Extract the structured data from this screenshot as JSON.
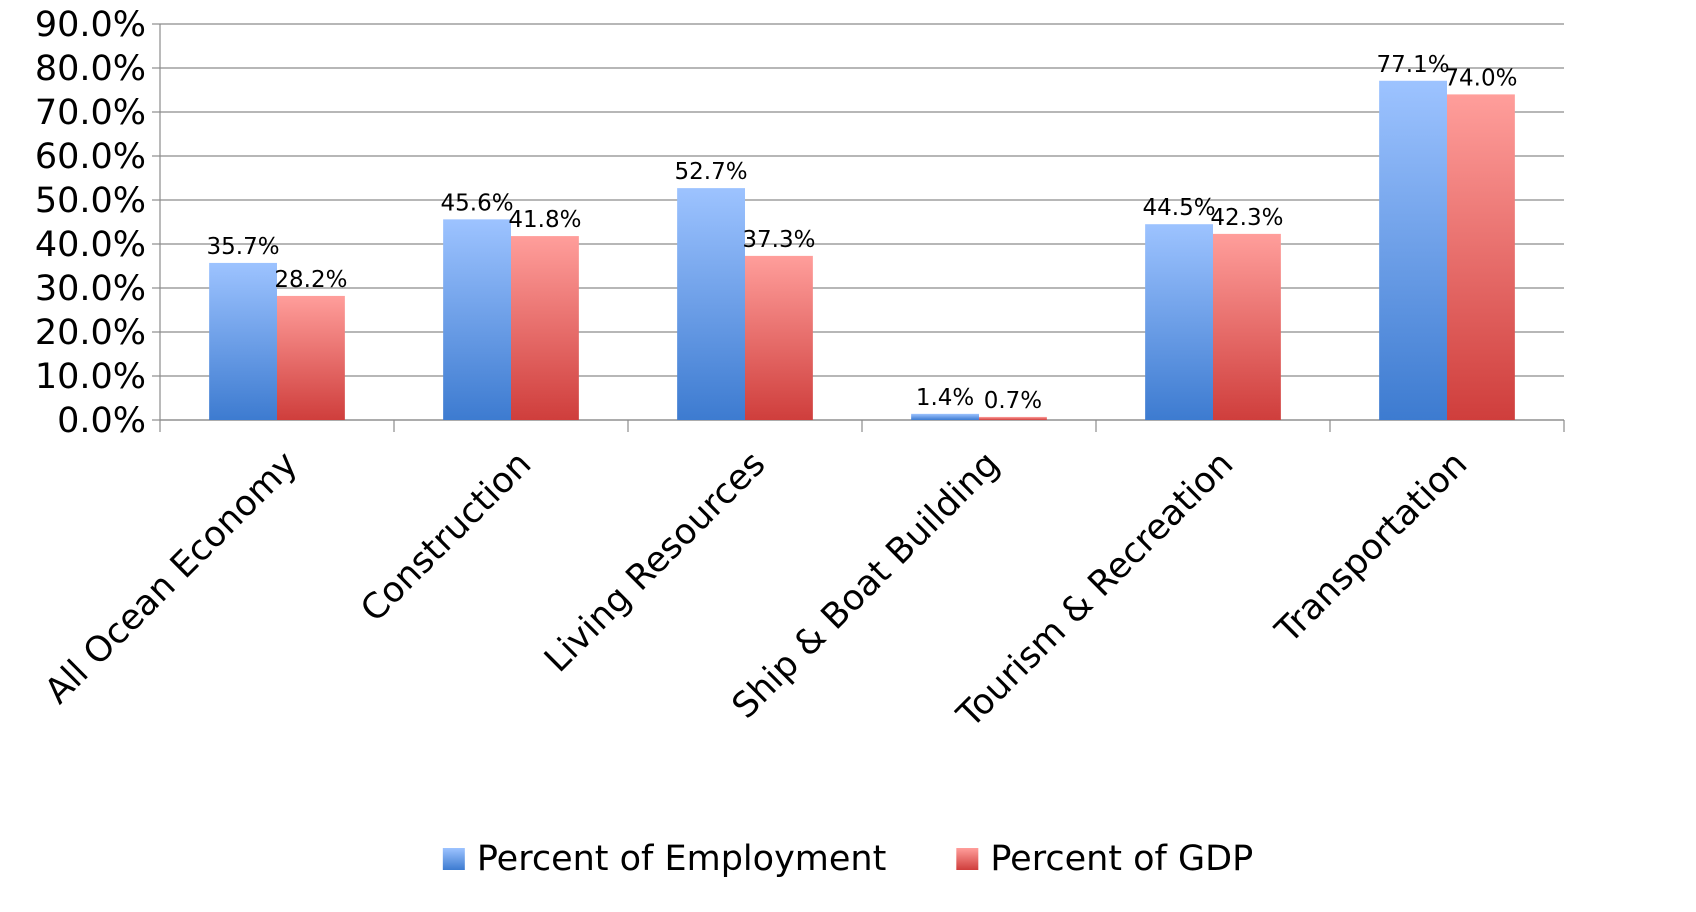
{
  "chart_data": {
    "type": "bar",
    "categories": [
      "All Ocean Economy",
      "Construction",
      "Living Resources",
      "Ship & Boat Building",
      "Tourism & Recreation",
      "Transportation"
    ],
    "series": [
      {
        "name": "Percent of Employment",
        "values": [
          35.7,
          45.6,
          52.7,
          1.4,
          44.5,
          77.1
        ],
        "labels": [
          "35.7%",
          "45.6%",
          "52.7%",
          "1.4%",
          "44.5%",
          "77.1%"
        ],
        "color": "#4F81BD",
        "color_light": "#9DC3FF",
        "color_dark": "#3D7BD0"
      },
      {
        "name": "Percent of GDP",
        "values": [
          28.2,
          41.8,
          37.3,
          0.7,
          42.3,
          74.0
        ],
        "labels": [
          "28.2%",
          "41.8%",
          "37.3%",
          "0.7%",
          "42.3%",
          "74.0%"
        ],
        "color": "#C0504D",
        "color_light": "#FF9E9B",
        "color_dark": "#CF3E3C"
      }
    ],
    "y_ticks": [
      "0.0%",
      "10.0%",
      "20.0%",
      "30.0%",
      "40.0%",
      "50.0%",
      "60.0%",
      "70.0%",
      "80.0%",
      "90.0%"
    ],
    "ylim": [
      0,
      90
    ],
    "y_step": 10,
    "grid": true,
    "legend_position": "bottom",
    "title": "",
    "xlabel": "",
    "ylabel": ""
  }
}
